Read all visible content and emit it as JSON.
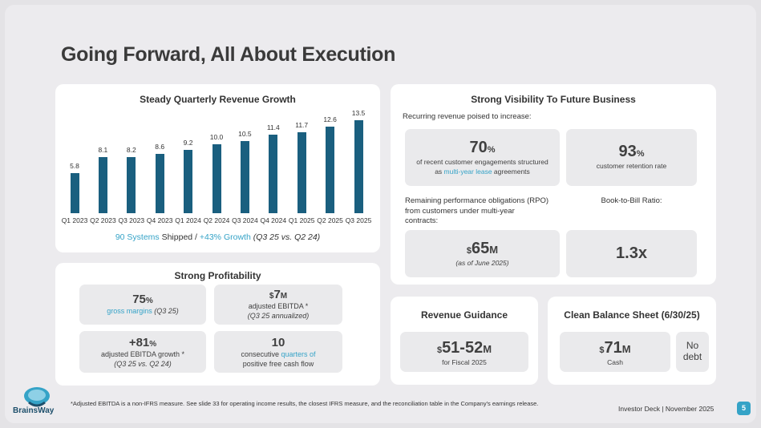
{
  "slide": {
    "title": "Going Forward, All About Execution",
    "footnote": "*Adjusted EBITDA is a non-IFRS measure. See slide 33 for operating income results, the closest IFRS measure, and the reconciliation table in the Company's earnings release.",
    "deck": "Investor Deck | November 2025",
    "page": "5",
    "logo_text": "BrainsWay"
  },
  "revenue": {
    "title": "Steady Quarterly Revenue Growth",
    "caption_systems": "90 Systems",
    "caption_shipped": " Shipped / ",
    "caption_growth": "+43% Growth",
    "caption_period": " (Q3 25 vs. Q2 24)"
  },
  "chart_data": {
    "type": "bar",
    "title": "Steady Quarterly Revenue Growth",
    "categories": [
      "Q1 2023",
      "Q2 2023",
      "Q3 2023",
      "Q4 2023",
      "Q1 2024",
      "Q2 2024",
      "Q3 2024",
      "Q4 2024",
      "Q1 2025",
      "Q2 2025",
      "Q3 2025"
    ],
    "values": [
      5.8,
      8.1,
      8.2,
      8.6,
      9.2,
      10.0,
      10.5,
      11.4,
      11.7,
      12.6,
      13.5
    ],
    "labels": [
      "5.8",
      "8.1",
      "8.2",
      "8.6",
      "9.2",
      "10.0",
      "10.5",
      "11.4",
      "11.7",
      "12.6",
      "13.5"
    ],
    "ylim": [
      0,
      13.5
    ],
    "color": "#1a5f7f"
  },
  "profitability": {
    "title": "Strong Profitability",
    "margin_value": "75",
    "margin_unit": "%",
    "margin_label": "gross margins",
    "margin_period": " (Q3 25)",
    "ebitda_prefix": "$",
    "ebitda_value": "7",
    "ebitda_unit": "M",
    "ebitda_label": "adjusted EBITDA *",
    "ebitda_period": "(Q3 25 annualized)",
    "growth_value": "+81",
    "growth_unit": "%",
    "growth_label": "adjusted EBITDA growth *",
    "growth_period": "(Q3 25 vs. Q2 24)",
    "fcf_value": "10",
    "fcf_label_a": "consecutive ",
    "fcf_label_b": "quarters of",
    "fcf_label_c": "positive free cash flow"
  },
  "visibility": {
    "title": "Strong Visibility To Future Business",
    "intro": "Recurring revenue poised to increase:",
    "recurring_value": "70",
    "recurring_unit": "%",
    "recurring_line1": "of recent customer engagements structured",
    "recurring_line2a": "as ",
    "recurring_line2b": "multi-year lease",
    "recurring_line2c": " agreements",
    "retention_value": "93",
    "retention_unit": "%",
    "retention_label": "customer retention rate",
    "rpo_line1": "Remaining performance obligations (RPO)",
    "rpo_line2": "from customers under multi-year",
    "rpo_line3": "contracts:",
    "rpo_prefix": "$",
    "rpo_value": "65",
    "rpo_unit": "M",
    "rpo_note": "(as of June 2025)",
    "btb_label": "Book-to-Bill Ratio:",
    "btb_value": "1.3x"
  },
  "guidance": {
    "title": "Revenue Guidance",
    "prefix": "$",
    "value": "51-52",
    "unit": "M",
    "label": "for Fiscal 2025"
  },
  "balance": {
    "title": "Clean Balance Sheet (6/30/25)",
    "cash_prefix": "$",
    "cash_value": "71",
    "cash_unit": "M",
    "cash_label": "Cash",
    "debt_line1": "No",
    "debt_line2": "debt"
  }
}
